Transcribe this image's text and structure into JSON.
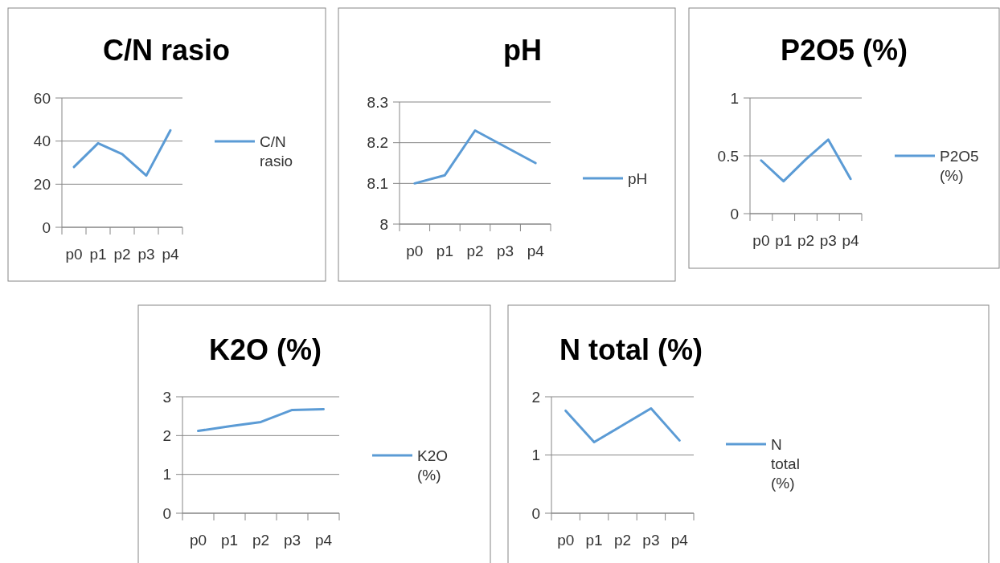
{
  "chart_data": [
    {
      "type": "line",
      "title": "C/N rasio",
      "categories": [
        "p0",
        "p1",
        "p2",
        "p3",
        "p4"
      ],
      "series": [
        {
          "name": "C/N rasio",
          "color": "#5b9bd5",
          "values": [
            28,
            39,
            34,
            24,
            45
          ]
        }
      ],
      "ylim": [
        0,
        60
      ],
      "yticks": [
        0,
        20,
        40,
        60
      ],
      "grid": "y",
      "legend": "right"
    },
    {
      "type": "line",
      "title": "pH",
      "categories": [
        "p0",
        "p1",
        "p2",
        "p3",
        "p4"
      ],
      "series": [
        {
          "name": "pH",
          "color": "#5b9bd5",
          "values": [
            8.1,
            8.12,
            8.23,
            8.19,
            8.15
          ]
        }
      ],
      "ylim": [
        8,
        8.3
      ],
      "yticks": [
        8,
        8.1,
        8.2,
        8.3
      ],
      "grid": "y",
      "legend": "right"
    },
    {
      "type": "line",
      "title": "P2O5 (%)",
      "categories": [
        "p0",
        "p1",
        "p2",
        "p3",
        "p4"
      ],
      "series": [
        {
          "name": "P2O5 (%)",
          "color": "#5b9bd5",
          "values": [
            0.46,
            0.28,
            0.47,
            0.64,
            0.3
          ]
        }
      ],
      "ylim": [
        0,
        1
      ],
      "yticks": [
        0,
        0.5,
        1
      ],
      "grid": "y",
      "legend": "right"
    },
    {
      "type": "line",
      "title": "K2O (%)",
      "categories": [
        "p0",
        "p1",
        "p2",
        "p3",
        "p4"
      ],
      "series": [
        {
          "name": "K2O (%)",
          "color": "#5b9bd5",
          "values": [
            2.12,
            2.24,
            2.35,
            2.66,
            2.68
          ]
        }
      ],
      "ylim": [
        0,
        3
      ],
      "yticks": [
        0,
        1,
        2,
        3
      ],
      "grid": "y",
      "legend": "right"
    },
    {
      "type": "line",
      "title": "N total (%)",
      "categories": [
        "p0",
        "p1",
        "p2",
        "p3",
        "p4"
      ],
      "series": [
        {
          "name": "N total (%)",
          "color": "#5b9bd5",
          "values": [
            1.76,
            1.22,
            1.51,
            1.8,
            1.25
          ]
        }
      ],
      "ylim": [
        0,
        2
      ],
      "yticks": [
        0,
        1,
        2
      ],
      "grid": "y",
      "legend": "right"
    }
  ]
}
